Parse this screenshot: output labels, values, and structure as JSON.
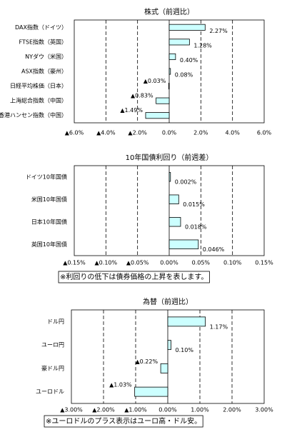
{
  "chart_data": [
    {
      "type": "hbar",
      "title": "株式（前週比）",
      "categories": [
        "DAX指数（ドイツ）",
        "FTSE指数（英国）",
        "NYダウ（米国）",
        "ASX指数（豪州）",
        "日経平均株価（日本）",
        "上海総合指数（中国）",
        "香港ハンセン指数（中国）"
      ],
      "values": [
        2.27,
        1.28,
        0.4,
        0.08,
        -0.03,
        -0.83,
        -1.49
      ],
      "value_labels": [
        "2.27%",
        "1.28%",
        "0.40%",
        "0.08%",
        "▲0.03%",
        "▲0.83%",
        "▲1.49%"
      ],
      "color": "#ccffff",
      "negative_color": "#ff0000",
      "xlim": [
        -6,
        6
      ],
      "xticks": [
        {
          "value": -6,
          "label": "▲6.0%"
        },
        {
          "value": -4,
          "label": "▲4.0%"
        },
        {
          "value": -2,
          "label": "▲2.0%"
        },
        {
          "value": 0,
          "label": "0.0%"
        },
        {
          "value": 2,
          "label": "2.0%"
        },
        {
          "value": 4,
          "label": "4.0%"
        },
        {
          "value": 6,
          "label": "6.0%"
        }
      ],
      "grid": true
    },
    {
      "type": "hbar",
      "title": "10年国債利回り（前週差）",
      "categories": [
        "ドイツ10年国債",
        "米国10年国債",
        "日本10年国債",
        "英国10年国債"
      ],
      "values": [
        0.002,
        0.015,
        0.018,
        0.046
      ],
      "value_labels": [
        "0.002%",
        "0.015%",
        "0.018%",
        "0.046%"
      ],
      "color": "#ccffff",
      "negative_color": "#ff0000",
      "xlim": [
        -0.15,
        0.15
      ],
      "xticks": [
        {
          "value": -0.15,
          "label": "▲0.15%"
        },
        {
          "value": -0.1,
          "label": "▲0.10%"
        },
        {
          "value": -0.05,
          "label": "▲0.05%"
        },
        {
          "value": 0,
          "label": "0.00%"
        },
        {
          "value": 0.05,
          "label": "0.05%"
        },
        {
          "value": 0.1,
          "label": "0.10%"
        },
        {
          "value": 0.15,
          "label": "0.15%"
        }
      ],
      "grid": true,
      "annotation": "※利回りの低下は債券価格の上昇を表します。"
    },
    {
      "type": "hbar",
      "title": "為替（前週比）",
      "categories": [
        "ドル円",
        "ユーロ円",
        "豪ドル円",
        "ユーロドル"
      ],
      "values": [
        1.17,
        0.1,
        -0.22,
        -1.03
      ],
      "value_labels": [
        "1.17%",
        "0.10%",
        "▲0.22%",
        "▲1.03%"
      ],
      "color": "#ccffff",
      "negative_color": "#ff0000",
      "xlim": [
        -3,
        3
      ],
      "xticks": [
        {
          "value": -3,
          "label": "▲3.00%"
        },
        {
          "value": -2,
          "label": "▲2.00%"
        },
        {
          "value": -1,
          "label": "▲1.00%"
        },
        {
          "value": 0,
          "label": "0.00%"
        },
        {
          "value": 1,
          "label": "1.00%"
        },
        {
          "value": 2,
          "label": "2.00%"
        },
        {
          "value": 3,
          "label": "3.00%"
        }
      ],
      "grid": true,
      "annotation": "※ユーロドルのプラス表示はユーロ高・ドル安。"
    }
  ]
}
